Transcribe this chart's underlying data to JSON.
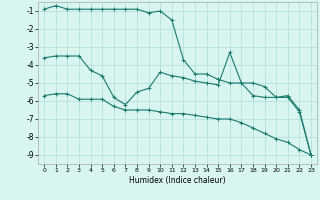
{
  "xlabel": "Humidex (Indice chaleur)",
  "bg_color": "#d8f5f0",
  "grid_color": "#b0ddd8",
  "line_color": "#1a7a6e",
  "ylim": [
    -9.5,
    -0.5
  ],
  "xlim": [
    -0.5,
    23.5
  ],
  "yticks": [
    -9,
    -8,
    -7,
    -6,
    -5,
    -4,
    -3,
    -2,
    -1
  ],
  "xticks": [
    0,
    1,
    2,
    3,
    4,
    5,
    6,
    7,
    8,
    9,
    10,
    11,
    12,
    13,
    14,
    15,
    16,
    17,
    18,
    19,
    20,
    21,
    22,
    23
  ],
  "line1_x": [
    0,
    1,
    2,
    3,
    4,
    5,
    6,
    7,
    8,
    9,
    10,
    11,
    12,
    13,
    14,
    15,
    16,
    17,
    18,
    19,
    20,
    21,
    22,
    23
  ],
  "line1_y": [
    -0.9,
    -0.7,
    -0.9,
    -0.9,
    -0.9,
    -0.9,
    -0.9,
    -0.9,
    -0.9,
    -1.1,
    -1.0,
    -1.5,
    -3.7,
    -4.5,
    -4.5,
    -4.8,
    -5.0,
    -5.0,
    -5.0,
    -5.2,
    -5.8,
    -5.8,
    -6.6,
    -9.0
  ],
  "line2_x": [
    0,
    1,
    2,
    3,
    4,
    5,
    6,
    7,
    8,
    9,
    10,
    11,
    12,
    13,
    14,
    15,
    16,
    17,
    18,
    19,
    20,
    21,
    22,
    23
  ],
  "line2_y": [
    -3.6,
    -3.5,
    -3.5,
    -3.5,
    -4.3,
    -4.6,
    -5.8,
    -6.2,
    -5.5,
    -5.3,
    -4.4,
    -4.6,
    -4.7,
    -4.9,
    -5.0,
    -5.1,
    -3.3,
    -5.0,
    -5.7,
    -5.8,
    -5.8,
    -5.7,
    -6.5,
    -9.0
  ],
  "line3_x": [
    0,
    1,
    2,
    3,
    4,
    5,
    6,
    7,
    8,
    9,
    10,
    11,
    12,
    13,
    14,
    15,
    16,
    17,
    18,
    19,
    20,
    21,
    22,
    23
  ],
  "line3_y": [
    -5.7,
    -5.6,
    -5.6,
    -5.9,
    -5.9,
    -5.9,
    -6.3,
    -6.5,
    -6.5,
    -6.5,
    -6.6,
    -6.7,
    -6.7,
    -6.8,
    -6.9,
    -7.0,
    -7.0,
    -7.2,
    -7.5,
    -7.8,
    -8.1,
    -8.3,
    -8.7,
    -9.0
  ]
}
